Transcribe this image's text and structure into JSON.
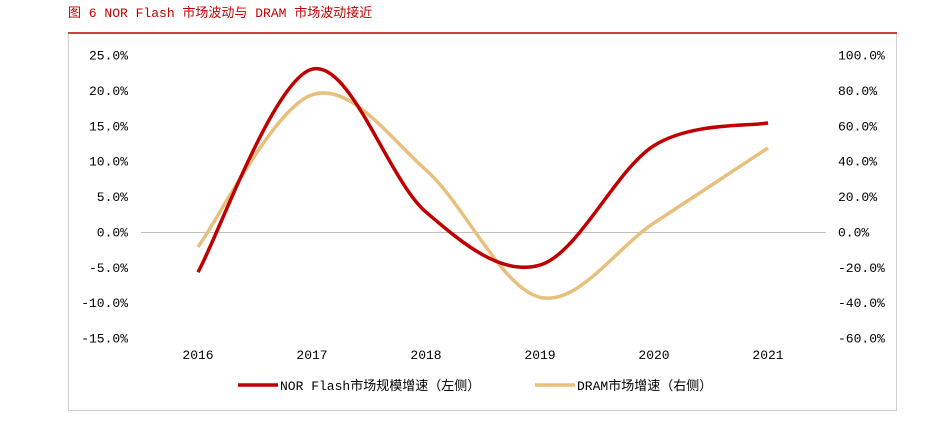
{
  "colors": {
    "title": "#C00000",
    "title_rule": "#C00000",
    "frame": "#D0D0D0",
    "zero_line": "#BFBFBF",
    "text": "#000000"
  },
  "chart_data": {
    "type": "line",
    "title": "图 6  NOR Flash 市场波动与 DRAM 市场波动接近",
    "categories": [
      "2016",
      "2017",
      "2018",
      "2019",
      "2020",
      "2021"
    ],
    "series": [
      {
        "name": "NOR Flash市场规模增速（左侧）",
        "axis": "left",
        "color": "#C00000",
        "values": [
          -5.7,
          23.0,
          2.8,
          -4.7,
          12.2,
          15.4
        ]
      },
      {
        "name": "DRAM市场增速（右侧）",
        "axis": "right",
        "color": "#E8C07D",
        "values": [
          -8.5,
          77.5,
          35.0,
          -37.0,
          5.0,
          47.5
        ]
      }
    ],
    "y_left": {
      "ylim": [
        -15,
        25
      ],
      "ticks": [
        "25.0%",
        "20.0%",
        "15.0%",
        "10.0%",
        "5.0%",
        "0.0%",
        "-5.0%",
        "-10.0%",
        "-15.0%"
      ]
    },
    "y_right": {
      "ylim": [
        -60,
        100
      ],
      "ticks": [
        "100.0%",
        "80.0%",
        "60.0%",
        "40.0%",
        "20.0%",
        "0.0%",
        "-20.0%",
        "-40.0%",
        "-60.0%"
      ]
    },
    "smooth": true,
    "grid": false,
    "legend": "bottom"
  }
}
